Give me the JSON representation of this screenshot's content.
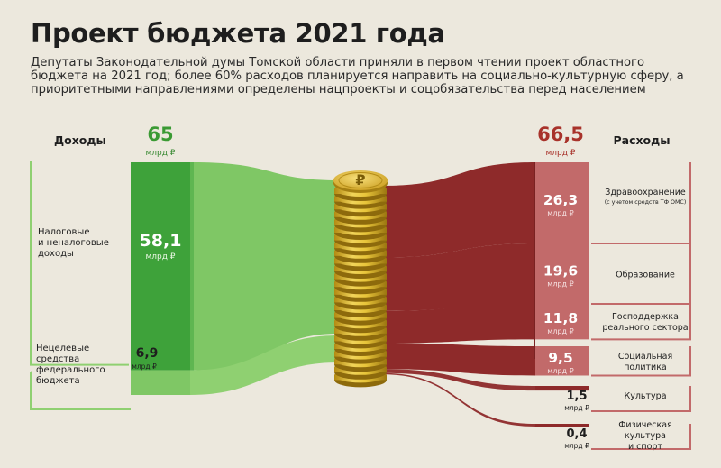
{
  "title": "Проект бюджета 2021 года",
  "subtitle": "Депутаты Законодательной думы Томской области приняли в первом чтении проект областного бюджета на 2021 год; более 60% расходов планируется направить на социально-культурную сферу, а приоритетными направлениями определены нацпроекты и соцобязательства перед населением",
  "colors": {
    "background": "#ece8dd",
    "income_dark": "#3ea23a",
    "income_light": "#7fc765",
    "expense_dark": "#8e2a2a",
    "expense_light": "#c26a6a",
    "coin": "#e2bd2e",
    "total_income_text": "#3a9a33",
    "total_expense_text": "#a8322a"
  },
  "icons": {
    "coin_stack": "ruble-coin-stack-icon"
  },
  "chart_data": {
    "type": "sankey",
    "unit": "млрд ₽",
    "income": {
      "label": "Доходы",
      "total": 65,
      "total_text": "65",
      "unit_text": "млрд ₽",
      "items": [
        {
          "label": "Налоговые\nи неналоговые\nдоходы",
          "value": 58.1,
          "value_text": "58,1",
          "unit_text": "млрд ₽"
        },
        {
          "label": "Нецелевые\nсредства\nфедерального\nбюджета",
          "value": 6.9,
          "value_text": "6,9",
          "unit_text": "млрд ₽"
        }
      ]
    },
    "expenses": {
      "label": "Расходы",
      "total": 66.5,
      "total_text": "66,5",
      "unit_text": "млрд ₽",
      "items": [
        {
          "label": "Здравоохранение",
          "note": "(с учетом средств ТФ ОМС)",
          "value": 26.3,
          "value_text": "26,3",
          "unit_text": "млрд ₽"
        },
        {
          "label": "Образование",
          "value": 19.6,
          "value_text": "19,6",
          "unit_text": "млрд ₽"
        },
        {
          "label": "Господдержка\nреального сектора",
          "value": 11.8,
          "value_text": "11,8",
          "unit_text": "млрд ₽"
        },
        {
          "label": "Социальная\nполитика",
          "value": 9.5,
          "value_text": "9,5",
          "unit_text": "млрд ₽"
        },
        {
          "label": "Культура",
          "value": 1.5,
          "value_text": "1,5",
          "unit_text": "млрд ₽"
        },
        {
          "label": "Физическая\nкультура\nи спорт",
          "value": 0.4,
          "value_text": "0,4",
          "unit_text": "млрд ₽"
        }
      ]
    }
  }
}
